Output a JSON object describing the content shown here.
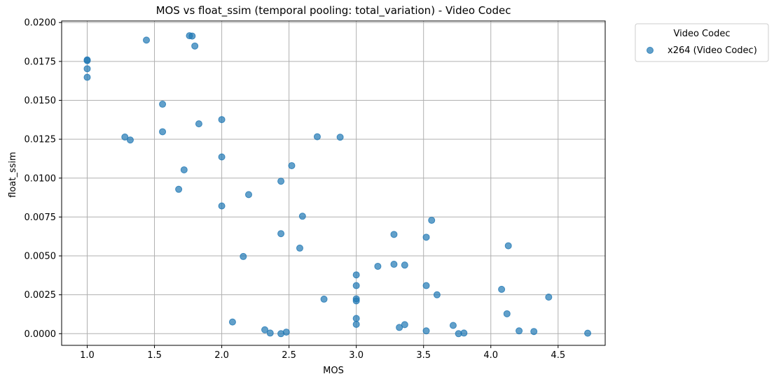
{
  "chart_data": {
    "type": "scatter",
    "title": "MOS vs float_ssim (temporal pooling: total_variation) - Video Codec",
    "xlabel": "MOS",
    "ylabel": "float_ssim",
    "xlim": [
      0.81,
      4.85
    ],
    "ylim": [
      -0.00075,
      0.0201
    ],
    "xticks": [
      1.0,
      1.5,
      2.0,
      2.5,
      3.0,
      3.5,
      4.0,
      4.5
    ],
    "xtick_labels": [
      "1.0",
      "1.5",
      "2.0",
      "2.5",
      "3.0",
      "3.5",
      "4.0",
      "4.5"
    ],
    "yticks": [
      0.0,
      0.0025,
      0.005,
      0.0075,
      0.01,
      0.0125,
      0.015,
      0.0175,
      0.02
    ],
    "ytick_labels": [
      "0.0000",
      "0.0025",
      "0.0050",
      "0.0075",
      "0.0100",
      "0.0125",
      "0.0150",
      "0.0175",
      "0.0200"
    ],
    "grid": true,
    "legend": {
      "title": "Video Codec",
      "placement": "outside-top-right"
    },
    "series": [
      {
        "name": "x264 (Video Codec)",
        "color": "#1f77b4",
        "points": [
          [
            1.0,
            0.0176
          ],
          [
            1.0,
            0.01755
          ],
          [
            1.0,
            0.01703
          ],
          [
            1.0,
            0.01648
          ],
          [
            1.44,
            0.01887
          ],
          [
            1.76,
            0.01915
          ],
          [
            1.78,
            0.01913
          ],
          [
            1.8,
            0.01849
          ],
          [
            1.28,
            0.01264
          ],
          [
            1.32,
            0.01245
          ],
          [
            1.56,
            0.01475
          ],
          [
            1.56,
            0.01298
          ],
          [
            1.83,
            0.01349
          ],
          [
            2.0,
            0.01376
          ],
          [
            1.72,
            0.01053
          ],
          [
            1.68,
            0.00928
          ],
          [
            2.0,
            0.01136
          ],
          [
            2.0,
            0.00821
          ],
          [
            2.2,
            0.00894
          ],
          [
            2.16,
            0.00496
          ],
          [
            2.08,
            0.00075
          ],
          [
            2.32,
            0.00025
          ],
          [
            2.36,
            4e-05
          ],
          [
            2.44,
            0.0
          ],
          [
            2.48,
            0.0001
          ],
          [
            2.44,
            0.00643
          ],
          [
            2.44,
            0.0098
          ],
          [
            2.52,
            0.0108
          ],
          [
            2.58,
            0.0055
          ],
          [
            2.6,
            0.00755
          ],
          [
            2.71,
            0.01266
          ],
          [
            2.88,
            0.01263
          ],
          [
            2.76,
            0.00222
          ],
          [
            3.0,
            0.00378
          ],
          [
            3.0,
            0.00309
          ],
          [
            3.0,
            0.00224
          ],
          [
            3.0,
            0.00211
          ],
          [
            3.0,
            0.00098
          ],
          [
            3.0,
            0.0006
          ],
          [
            3.16,
            0.00433
          ],
          [
            3.28,
            0.00446
          ],
          [
            3.28,
            0.00638
          ],
          [
            3.32,
            0.0004
          ],
          [
            3.36,
            0.00441
          ],
          [
            3.36,
            0.00058
          ],
          [
            3.52,
            0.0062
          ],
          [
            3.52,
            0.00309
          ],
          [
            3.52,
            0.00018
          ],
          [
            3.56,
            0.00729
          ],
          [
            3.6,
            0.0025
          ],
          [
            3.72,
            0.00053
          ],
          [
            3.76,
            0.0
          ],
          [
            3.8,
            4e-05
          ],
          [
            4.08,
            0.00285
          ],
          [
            4.12,
            0.00128
          ],
          [
            4.13,
            0.00565
          ],
          [
            4.21,
            0.00018
          ],
          [
            4.32,
            0.00014
          ],
          [
            4.43,
            0.00235
          ],
          [
            4.72,
            3e-05
          ]
        ]
      }
    ]
  }
}
